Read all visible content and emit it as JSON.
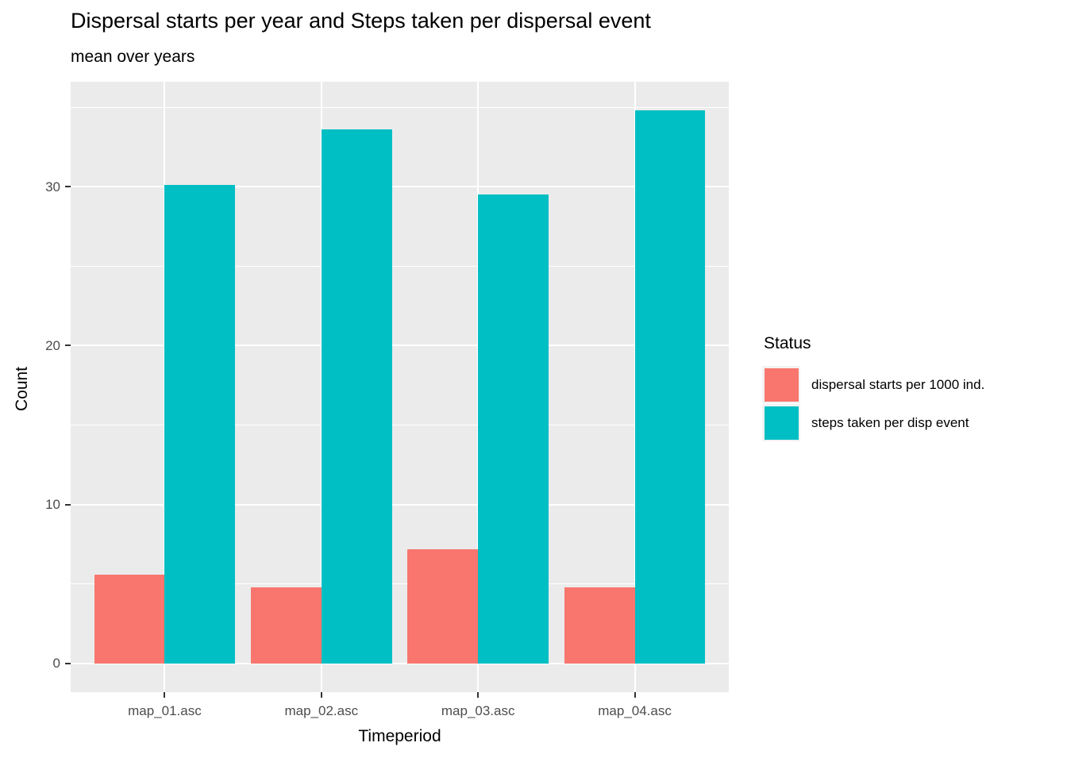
{
  "title": "Dispersal starts per year and Steps taken per dispersal event",
  "subtitle": "mean over years",
  "chart_data": {
    "type": "bar",
    "grouping": "dodged",
    "title": "Dispersal starts per year and Steps taken per dispersal event",
    "subtitle": "mean over years",
    "xlabel": "Timeperiod",
    "ylabel": "Count",
    "categories": [
      "map_01.asc",
      "map_02.asc",
      "map_03.asc",
      "map_04.asc"
    ],
    "series": [
      {
        "name": "dispersal starts per 1000 ind.",
        "color": "#F8766D",
        "values": [
          5.6,
          4.8,
          7.2,
          4.8
        ]
      },
      {
        "name": "steps taken per disp event",
        "color": "#00BFC4",
        "values": [
          30.1,
          33.6,
          29.5,
          34.8
        ]
      }
    ],
    "ylim": [
      -1.8,
      36.6
    ],
    "yticks": [
      0,
      10,
      20,
      30
    ],
    "yminor_ticks": [
      5,
      15,
      25,
      35
    ],
    "grid": "on",
    "legend_title": "Status",
    "legend_position": "right",
    "colors": {
      "panel_background": "#EBEBEB",
      "gridline": "#FFFFFF",
      "tick_label": "#4D4D4D",
      "tick_mark": "#333333",
      "legend_key_background": "#F2F2F2"
    },
    "bar_group_width_fraction": 0.9
  }
}
